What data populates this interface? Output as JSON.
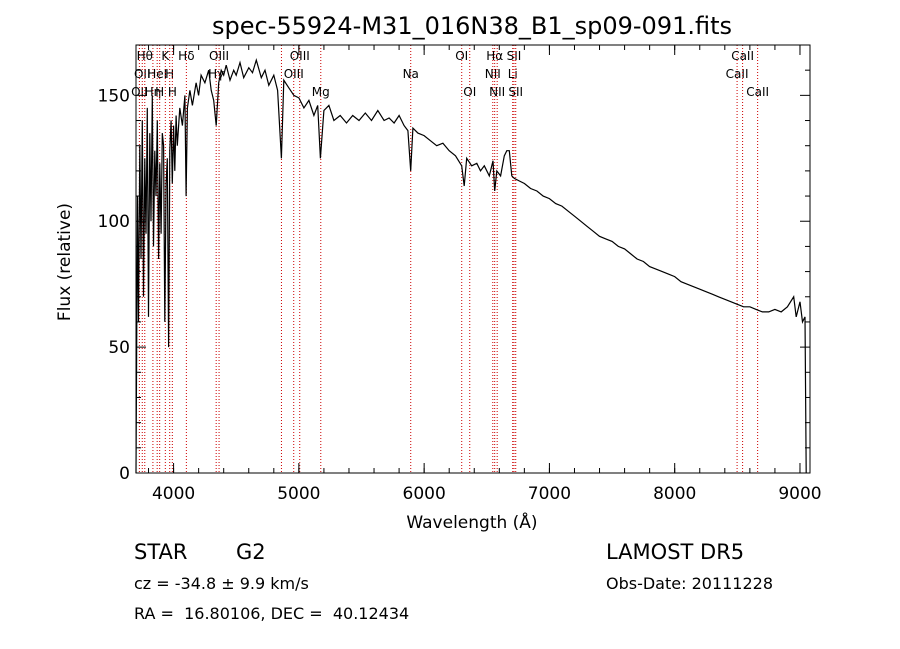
{
  "chart_data": {
    "type": "line",
    "title": "spec-55924-M31_016N38_B1_sp09-091.fits",
    "xlabel": "Wavelength (Å)",
    "ylabel": "Flux (relative)",
    "xlim": [
      3700,
      9080
    ],
    "ylim": [
      0,
      170
    ],
    "xticks": [
      4000,
      5000,
      6000,
      7000,
      8000,
      9000
    ],
    "yticks": [
      0,
      50,
      100,
      150
    ],
    "grid": false,
    "series": [
      {
        "values": [
          [
            3700,
            0
          ],
          [
            3705,
            45
          ],
          [
            3712,
            110
          ],
          [
            3720,
            60
          ],
          [
            3730,
            130
          ],
          [
            3740,
            85
          ],
          [
            3750,
            140
          ],
          [
            3760,
            70
          ],
          [
            3770,
            125
          ],
          [
            3780,
            95
          ],
          [
            3790,
            145
          ],
          [
            3800,
            62
          ],
          [
            3810,
            135
          ],
          [
            3820,
            100
          ],
          [
            3830,
            150
          ],
          [
            3840,
            90
          ],
          [
            3850,
            128
          ],
          [
            3860,
            110
          ],
          [
            3870,
            140
          ],
          [
            3880,
            85
          ],
          [
            3890,
            123
          ],
          [
            3900,
            95
          ],
          [
            3910,
            135
          ],
          [
            3920,
            130
          ],
          [
            3930,
            60
          ],
          [
            3940,
            115
          ],
          [
            3950,
            125
          ],
          [
            3960,
            50
          ],
          [
            3970,
            128
          ],
          [
            3980,
            140
          ],
          [
            3990,
            115
          ],
          [
            4000,
            138
          ],
          [
            4010,
            120
          ],
          [
            4020,
            142
          ],
          [
            4030,
            130
          ],
          [
            4050,
            145
          ],
          [
            4070,
            138
          ],
          [
            4090,
            150
          ],
          [
            4100,
            110
          ],
          [
            4110,
            145
          ],
          [
            4130,
            152
          ],
          [
            4150,
            146
          ],
          [
            4180,
            155
          ],
          [
            4200,
            150
          ],
          [
            4220,
            158
          ],
          [
            4250,
            155
          ],
          [
            4280,
            160
          ],
          [
            4300,
            152
          ],
          [
            4320,
            148
          ],
          [
            4340,
            138
          ],
          [
            4360,
            155
          ],
          [
            4380,
            160
          ],
          [
            4400,
            158
          ],
          [
            4420,
            162
          ],
          [
            4450,
            156
          ],
          [
            4480,
            160
          ],
          [
            4500,
            158
          ],
          [
            4530,
            163
          ],
          [
            4560,
            157
          ],
          [
            4600,
            161
          ],
          [
            4630,
            159
          ],
          [
            4660,
            164
          ],
          [
            4700,
            157
          ],
          [
            4730,
            160
          ],
          [
            4760,
            154
          ],
          [
            4800,
            158
          ],
          [
            4830,
            152
          ],
          [
            4861,
            125
          ],
          [
            4880,
            156
          ],
          [
            4920,
            153
          ],
          [
            4960,
            150
          ],
          [
            5000,
            149
          ],
          [
            5040,
            145
          ],
          [
            5080,
            148
          ],
          [
            5120,
            142
          ],
          [
            5150,
            146
          ],
          [
            5172,
            125
          ],
          [
            5200,
            144
          ],
          [
            5240,
            146
          ],
          [
            5280,
            140
          ],
          [
            5330,
            142
          ],
          [
            5380,
            139
          ],
          [
            5430,
            142
          ],
          [
            5480,
            140
          ],
          [
            5530,
            143
          ],
          [
            5580,
            140
          ],
          [
            5630,
            144
          ],
          [
            5680,
            140
          ],
          [
            5720,
            141
          ],
          [
            5760,
            139
          ],
          [
            5800,
            142
          ],
          [
            5840,
            138
          ],
          [
            5870,
            136
          ],
          [
            5893,
            120
          ],
          [
            5910,
            137
          ],
          [
            5950,
            135
          ],
          [
            6000,
            134
          ],
          [
            6050,
            132
          ],
          [
            6100,
            130
          ],
          [
            6150,
            131
          ],
          [
            6200,
            128
          ],
          [
            6250,
            126
          ],
          [
            6300,
            122
          ],
          [
            6320,
            114
          ],
          [
            6340,
            125
          ],
          [
            6380,
            122
          ],
          [
            6420,
            123
          ],
          [
            6450,
            120
          ],
          [
            6480,
            122
          ],
          [
            6520,
            118
          ],
          [
            6550,
            124
          ],
          [
            6563,
            112
          ],
          [
            6580,
            120
          ],
          [
            6610,
            118
          ],
          [
            6640,
            126
          ],
          [
            6660,
            128
          ],
          [
            6680,
            128
          ],
          [
            6700,
            118
          ],
          [
            6720,
            117
          ],
          [
            6760,
            116
          ],
          [
            6800,
            115
          ],
          [
            6850,
            113
          ],
          [
            6900,
            112
          ],
          [
            6950,
            110
          ],
          [
            7000,
            109
          ],
          [
            7050,
            107
          ],
          [
            7100,
            106
          ],
          [
            7150,
            104
          ],
          [
            7200,
            102
          ],
          [
            7250,
            100
          ],
          [
            7300,
            98
          ],
          [
            7350,
            96
          ],
          [
            7400,
            94
          ],
          [
            7450,
            93
          ],
          [
            7500,
            92
          ],
          [
            7550,
            90
          ],
          [
            7600,
            89
          ],
          [
            7650,
            87
          ],
          [
            7700,
            85
          ],
          [
            7750,
            84
          ],
          [
            7800,
            82
          ],
          [
            7850,
            81
          ],
          [
            7900,
            80
          ],
          [
            7950,
            79
          ],
          [
            8000,
            78
          ],
          [
            8050,
            76
          ],
          [
            8100,
            75
          ],
          [
            8150,
            74
          ],
          [
            8200,
            73
          ],
          [
            8250,
            72
          ],
          [
            8300,
            71
          ],
          [
            8350,
            70
          ],
          [
            8400,
            69
          ],
          [
            8450,
            68
          ],
          [
            8500,
            67
          ],
          [
            8550,
            66
          ],
          [
            8600,
            66
          ],
          [
            8650,
            65
          ],
          [
            8700,
            64
          ],
          [
            8750,
            64
          ],
          [
            8800,
            65
          ],
          [
            8850,
            64
          ],
          [
            8900,
            66
          ],
          [
            8950,
            70
          ],
          [
            8970,
            62
          ],
          [
            9000,
            68
          ],
          [
            9020,
            60
          ],
          [
            9040,
            62
          ],
          [
            9050,
            0
          ]
        ]
      }
    ],
    "emission_lines": [
      {
        "wl": 3727,
        "labels": [
          {
            "text": "OII",
            "row": 2
          }
        ]
      },
      {
        "wl": 3750,
        "labels": [
          {
            "text": "OII",
            "row": 1
          }
        ]
      },
      {
        "wl": 3770,
        "labels": [
          {
            "text": "Hθ",
            "row": 0
          }
        ]
      },
      {
        "wl": 3835,
        "labels": [
          {
            "text": "Hη",
            "row": 2
          }
        ]
      },
      {
        "wl": 3869,
        "labels": [
          {
            "text": "HeI",
            "row": 1
          }
        ]
      },
      {
        "wl": 3889,
        "labels": [
          {
            "text": "H",
            "row": 2
          }
        ]
      },
      {
        "wl": 3934,
        "labels": [
          {
            "text": "K",
            "row": 0
          }
        ]
      },
      {
        "wl": 3969,
        "labels": [
          {
            "text": "H",
            "row": 1
          }
        ]
      },
      {
        "wl": 3990,
        "labels": [
          {
            "text": "H",
            "row": 2
          }
        ]
      },
      {
        "wl": 4102,
        "labels": [
          {
            "text": "Hδ",
            "row": 0
          }
        ]
      },
      {
        "wl": 4340,
        "labels": [
          {
            "text": "Hγ",
            "row": 1
          }
        ]
      },
      {
        "wl": 4363,
        "labels": [
          {
            "text": "OIII",
            "row": 0
          }
        ]
      },
      {
        "wl": 4861,
        "labels": []
      },
      {
        "wl": 4959,
        "labels": [
          {
            "text": "OIII",
            "row": 1
          }
        ]
      },
      {
        "wl": 5007,
        "labels": [
          {
            "text": "OIII",
            "row": 0
          }
        ]
      },
      {
        "wl": 5175,
        "labels": [
          {
            "text": "Mg",
            "row": 2
          }
        ]
      },
      {
        "wl": 5893,
        "labels": [
          {
            "text": "Na",
            "row": 1
          }
        ]
      },
      {
        "wl": 6300,
        "labels": [
          {
            "text": "OI",
            "row": 0
          }
        ]
      },
      {
        "wl": 6364,
        "labels": [
          {
            "text": "OI",
            "row": 2
          }
        ]
      },
      {
        "wl": 6548,
        "labels": [
          {
            "text": "NII",
            "row": 1
          }
        ]
      },
      {
        "wl": 6563,
        "labels": [
          {
            "text": "Hα",
            "row": 0
          }
        ]
      },
      {
        "wl": 6583,
        "labels": [
          {
            "text": "NII",
            "row": 2
          }
        ]
      },
      {
        "wl": 6707,
        "labels": [
          {
            "text": "Li",
            "row": 1
          }
        ]
      },
      {
        "wl": 6717,
        "labels": [
          {
            "text": "SII",
            "row": 0
          }
        ]
      },
      {
        "wl": 6731,
        "labels": [
          {
            "text": "SII",
            "row": 2
          }
        ]
      },
      {
        "wl": 8498,
        "labels": [
          {
            "text": "CaII",
            "row": 1
          }
        ]
      },
      {
        "wl": 8542,
        "labels": [
          {
            "text": "CaII",
            "row": 0
          }
        ]
      },
      {
        "wl": 8662,
        "labels": [
          {
            "text": "CaII",
            "row": 2
          }
        ]
      }
    ]
  },
  "info": {
    "class": "STAR",
    "subclass": "G2",
    "survey": "LAMOST DR5",
    "cz": "cz = -34.8 ± 9.9 km/s",
    "obs_date": "Obs-Date: 20111228",
    "coords": "RA =  16.80106, DEC =  40.12434"
  },
  "colors": {
    "line_marker": "#cc0000",
    "spectrum": "#000000"
  }
}
